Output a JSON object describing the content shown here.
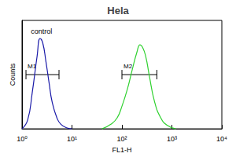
{
  "chart_data": {
    "type": "line",
    "title": "Hela",
    "xlabel": "FL1-H",
    "ylabel": "Counts",
    "log": "x",
    "tick_labels": "x",
    "grid": false,
    "xlim": [
      1,
      10000
    ],
    "xticks": [
      {
        "value": 1,
        "label": "10⁰"
      },
      {
        "value": 10,
        "label": "10¹"
      },
      {
        "value": 100,
        "label": "10²"
      },
      {
        "value": 1000,
        "label": "10³"
      },
      {
        "value": 10000,
        "label": "10⁴"
      }
    ],
    "ylim": [
      0,
      120
    ],
    "series": [
      {
        "color": "#1a1aa8",
        "x": [
          1,
          1.3,
          1.6,
          2,
          2.3,
          2.6,
          3,
          3.5,
          4,
          5,
          6,
          8,
          10
        ],
        "values": [
          0,
          10,
          40,
          80,
          100,
          95,
          75,
          50,
          30,
          12,
          5,
          1,
          0
        ]
      },
      {
        "color": "#2fd12f",
        "x": [
          40,
          60,
          80,
          100,
          130,
          160,
          200,
          230,
          260,
          300,
          350,
          450,
          600,
          800,
          1200
        ],
        "values": [
          0,
          5,
          12,
          25,
          45,
          65,
          85,
          93,
          90,
          80,
          60,
          30,
          12,
          4,
          0
        ]
      }
    ],
    "gates": [
      {
        "label": "M1",
        "xmin": 1.2,
        "xmax": 5.5,
        "y": 60
      },
      {
        "label": "M2",
        "xmin": 100,
        "xmax": 500,
        "y": 60
      }
    ],
    "annotations": [
      {
        "text": "control",
        "x": 1.5,
        "y": 108
      }
    ]
  }
}
